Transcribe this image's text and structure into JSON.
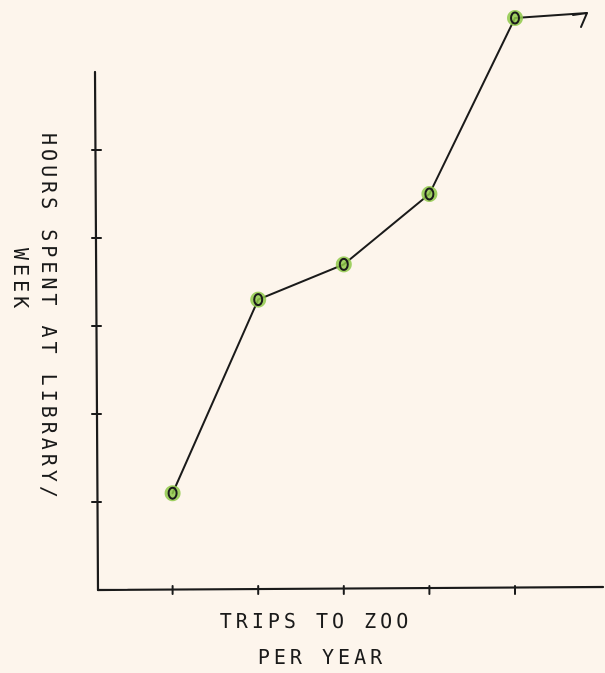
{
  "colors": {
    "background": "#fdf5ec",
    "ink": "#1a1a1a",
    "point_accent": "#8fc94a"
  },
  "chart_data": {
    "type": "line",
    "xlabel_lines": [
      "TRIPS TO ZOO",
      "PER YEAR"
    ],
    "ylabel_lines": [
      "HOURS SPENT AT LIBRARY/",
      "WEEK"
    ],
    "x": [
      1,
      2,
      3,
      4,
      5
    ],
    "series": [
      {
        "values": [
          1.1,
          3.3,
          3.7,
          4.5,
          6.5
        ]
      }
    ],
    "xlim": [
      0,
      6
    ],
    "ylim": [
      0,
      7
    ],
    "x_ticks": [
      1,
      2,
      3,
      4,
      5
    ],
    "y_ticks": [
      1,
      2,
      3,
      4,
      5
    ],
    "tick_labels": "none",
    "grid": false,
    "legend": "none",
    "trend_arrow": true
  }
}
